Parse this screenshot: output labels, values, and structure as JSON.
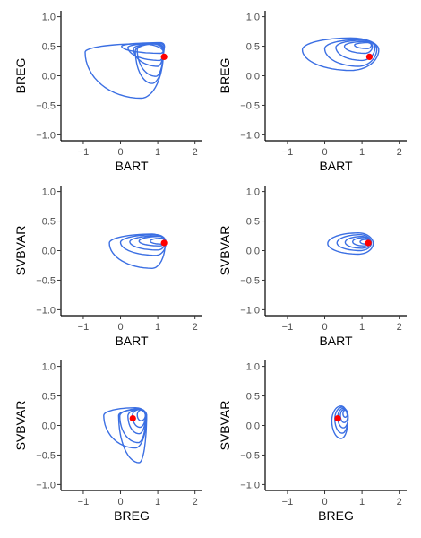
{
  "colors": {
    "contour": "#3b6fe3",
    "point": "#ff0000",
    "axis": "#000000",
    "tick_text": "#4d4d4d"
  },
  "chart_data": [
    {
      "type": "density_contour",
      "xlabel": "BART",
      "ylabel": "BREG",
      "xlim": [
        -1.6,
        2.2
      ],
      "ylim": [
        -1.1,
        1.1
      ],
      "xticks": [
        -1,
        0,
        1,
        2
      ],
      "xtick_labels": [
        "−1",
        "0",
        "1",
        "2"
      ],
      "yticks": [
        -1.0,
        -0.5,
        0.0,
        0.5,
        1.0
      ],
      "ytick_labels": [
        "−1.0",
        "−0.5",
        "0.0",
        "0.5",
        "1.0"
      ],
      "point": {
        "x": 1.17,
        "y": 0.32
      },
      "contours": [
        {
          "cx": 1.08,
          "cy": 0.5,
          "left": 1.05,
          "right": 0.1,
          "up": 0.06,
          "down": 0.12
        },
        {
          "cx": 1.05,
          "cy": 0.48,
          "left": 0.85,
          "right": 0.12,
          "up": 0.07,
          "down": 0.22
        },
        {
          "cx": 1.0,
          "cy": 0.46,
          "left": 0.65,
          "right": 0.15,
          "up": 0.08,
          "down": 0.3
        },
        {
          "cx": 0.95,
          "cy": 0.44,
          "left": 0.5,
          "right": 0.2,
          "up": 0.1,
          "down": 0.45
        },
        {
          "cx": 0.85,
          "cy": 0.42,
          "left": 0.45,
          "right": 0.3,
          "up": 0.12,
          "down": 0.55
        },
        {
          "cx": 0.55,
          "cy": 0.4,
          "left": 1.5,
          "right": 0.6,
          "up": 0.14,
          "down": 0.78
        }
      ]
    },
    {
      "type": "density_contour",
      "xlabel": "BART",
      "ylabel": "BREG",
      "xlim": [
        -1.6,
        2.2
      ],
      "ylim": [
        -1.1,
        1.1
      ],
      "xticks": [
        -1,
        0,
        1,
        2
      ],
      "xtick_labels": [
        "−1",
        "0",
        "1",
        "2"
      ],
      "yticks": [
        -1.0,
        -0.5,
        0.0,
        0.5,
        1.0
      ],
      "ytick_labels": [
        "−1.0",
        "−0.5",
        "0.0",
        "0.5",
        "1.0"
      ],
      "point": {
        "x": 1.2,
        "y": 0.32
      },
      "contours": [
        {
          "cx": 1.15,
          "cy": 0.52,
          "left": 0.35,
          "right": 0.1,
          "up": 0.04,
          "down": 0.06
        },
        {
          "cx": 1.08,
          "cy": 0.5,
          "left": 0.55,
          "right": 0.2,
          "up": 0.08,
          "down": 0.12
        },
        {
          "cx": 1.0,
          "cy": 0.48,
          "left": 0.7,
          "right": 0.35,
          "up": 0.12,
          "down": 0.22
        },
        {
          "cx": 0.9,
          "cy": 0.46,
          "left": 0.9,
          "right": 0.5,
          "up": 0.15,
          "down": 0.3
        },
        {
          "cx": 0.7,
          "cy": 0.44,
          "left": 1.3,
          "right": 0.75,
          "up": 0.2,
          "down": 0.35
        }
      ]
    },
    {
      "type": "density_contour",
      "xlabel": "BART",
      "ylabel": "SVBVAR",
      "xlim": [
        -1.6,
        2.2
      ],
      "ylim": [
        -1.1,
        1.1
      ],
      "xticks": [
        -1,
        0,
        1,
        2
      ],
      "xtick_labels": [
        "−1",
        "0",
        "1",
        "2"
      ],
      "yticks": [
        -1.0,
        -0.5,
        0.0,
        0.5,
        1.0
      ],
      "ytick_labels": [
        "−1.0",
        "−0.5",
        "0.0",
        "0.5",
        "1.0"
      ],
      "point": {
        "x": 1.17,
        "y": 0.13
      },
      "contours": [
        {
          "cx": 1.1,
          "cy": 0.16,
          "left": 0.3,
          "right": 0.08,
          "up": 0.05,
          "down": 0.05
        },
        {
          "cx": 1.05,
          "cy": 0.16,
          "left": 0.55,
          "right": 0.15,
          "up": 0.08,
          "down": 0.08
        },
        {
          "cx": 1.0,
          "cy": 0.15,
          "left": 0.75,
          "right": 0.2,
          "up": 0.1,
          "down": 0.14
        },
        {
          "cx": 0.95,
          "cy": 0.14,
          "left": 0.95,
          "right": 0.27,
          "up": 0.13,
          "down": 0.22
        },
        {
          "cx": 0.85,
          "cy": 0.13,
          "left": 1.15,
          "right": 0.35,
          "up": 0.15,
          "down": 0.43
        }
      ]
    },
    {
      "type": "density_contour",
      "xlabel": "BART",
      "ylabel": "SVBVAR",
      "xlim": [
        -1.6,
        2.2
      ],
      "ylim": [
        -1.1,
        1.1
      ],
      "xticks": [
        -1,
        0,
        1,
        2
      ],
      "xtick_labels": [
        "−1",
        "0",
        "1",
        "2"
      ],
      "yticks": [
        -1.0,
        -0.5,
        0.0,
        0.5,
        1.0
      ],
      "ytick_labels": [
        "−1.0",
        "−0.5",
        "0.0",
        "0.5",
        "1.0"
      ],
      "point": {
        "x": 1.17,
        "y": 0.13
      },
      "contours": [
        {
          "cx": 1.1,
          "cy": 0.15,
          "left": 0.15,
          "right": 0.1,
          "up": 0.04,
          "down": 0.04
        },
        {
          "cx": 1.05,
          "cy": 0.15,
          "left": 0.3,
          "right": 0.15,
          "up": 0.07,
          "down": 0.07
        },
        {
          "cx": 1.0,
          "cy": 0.14,
          "left": 0.45,
          "right": 0.22,
          "up": 0.1,
          "down": 0.1
        },
        {
          "cx": 0.95,
          "cy": 0.13,
          "left": 0.62,
          "right": 0.3,
          "up": 0.14,
          "down": 0.13
        },
        {
          "cx": 0.9,
          "cy": 0.12,
          "left": 0.82,
          "right": 0.4,
          "up": 0.18,
          "down": 0.18
        }
      ]
    },
    {
      "type": "density_contour",
      "xlabel": "BREG",
      "ylabel": "SVBVAR",
      "xlim": [
        -1.6,
        2.2
      ],
      "ylim": [
        -1.1,
        1.1
      ],
      "xticks": [
        -1,
        0,
        1,
        2
      ],
      "xtick_labels": [
        "−1",
        "0",
        "1",
        "2"
      ],
      "yticks": [
        -1.0,
        -0.5,
        0.0,
        0.5,
        1.0
      ],
      "ytick_labels": [
        "−1.0",
        "−0.5",
        "0.0",
        "0.5",
        "1.0"
      ],
      "point": {
        "x": 0.33,
        "y": 0.12
      },
      "contours": [
        {
          "cx": 0.55,
          "cy": 0.18,
          "left": 0.1,
          "right": 0.12,
          "up": 0.08,
          "down": 0.1
        },
        {
          "cx": 0.52,
          "cy": 0.17,
          "left": 0.2,
          "right": 0.15,
          "up": 0.1,
          "down": 0.2
        },
        {
          "cx": 0.5,
          "cy": 0.16,
          "left": 0.3,
          "right": 0.17,
          "up": 0.11,
          "down": 0.3
        },
        {
          "cx": 0.48,
          "cy": 0.16,
          "left": 0.5,
          "right": 0.2,
          "up": 0.12,
          "down": 0.45
        },
        {
          "cx": 0.5,
          "cy": 0.17,
          "left": 0.55,
          "right": 0.2,
          "up": 0.1,
          "down": 0.8
        },
        {
          "cx": 0.4,
          "cy": 0.17,
          "left": 0.85,
          "right": 0.3,
          "up": 0.13,
          "down": 0.55
        }
      ]
    },
    {
      "type": "density_contour",
      "xlabel": "BREG",
      "ylabel": "SVBVAR",
      "xlim": [
        -1.6,
        2.2
      ],
      "ylim": [
        -1.1,
        1.1
      ],
      "xticks": [
        -1,
        0,
        1,
        2
      ],
      "xtick_labels": [
        "−1",
        "0",
        "1",
        "2"
      ],
      "yticks": [
        -1.0,
        -0.5,
        0.0,
        0.5,
        1.0
      ],
      "ytick_labels": [
        "−1.0",
        "−0.5",
        "0.0",
        "0.5",
        "1.0"
      ],
      "point": {
        "x": 0.35,
        "y": 0.12
      },
      "contours": [
        {
          "cx": 0.55,
          "cy": 0.2,
          "left": 0.06,
          "right": 0.06,
          "up": 0.06,
          "down": 0.06
        },
        {
          "cx": 0.52,
          "cy": 0.17,
          "left": 0.1,
          "right": 0.1,
          "up": 0.1,
          "down": 0.12
        },
        {
          "cx": 0.5,
          "cy": 0.14,
          "left": 0.15,
          "right": 0.13,
          "up": 0.15,
          "down": 0.18
        },
        {
          "cx": 0.47,
          "cy": 0.11,
          "left": 0.2,
          "right": 0.15,
          "up": 0.2,
          "down": 0.24
        },
        {
          "cx": 0.44,
          "cy": 0.08,
          "left": 0.25,
          "right": 0.18,
          "up": 0.25,
          "down": 0.3
        }
      ]
    }
  ]
}
